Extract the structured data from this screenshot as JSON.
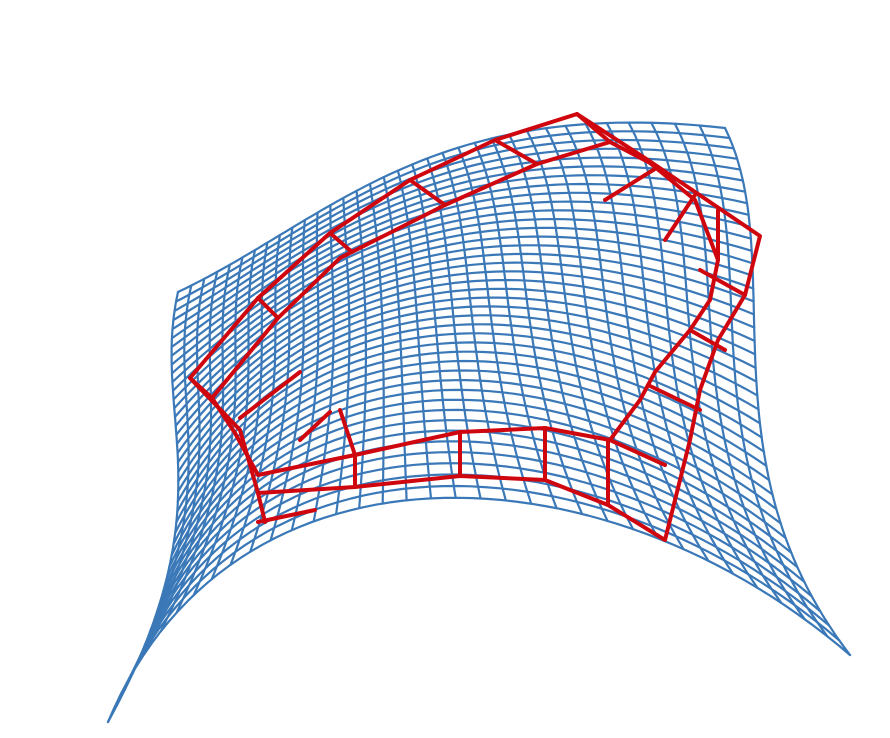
{
  "figure": {
    "surface_mesh": {
      "color": "#3a78b8",
      "rows": 40,
      "cols": 34
    },
    "frame_overlay": {
      "color": "#d0060e"
    }
  }
}
